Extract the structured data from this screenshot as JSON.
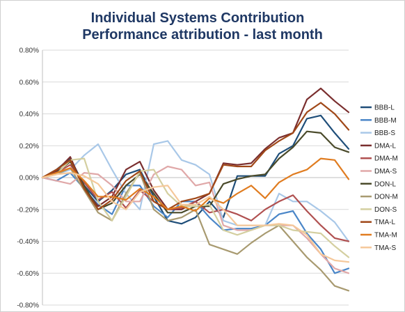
{
  "chart_data": {
    "type": "line",
    "title": "Individual Systems Contribution",
    "subtitle": "Performance attribution - last month",
    "xlabel": "",
    "ylabel": "",
    "ylim": [
      -0.008,
      0.008
    ],
    "y_ticks": [
      "0.80%",
      "0.60%",
      "0.40%",
      "0.20%",
      "0.00%",
      "-0.20%",
      "-0.40%",
      "-0.60%",
      "-0.80%"
    ],
    "y_tick_values": [
      0.008,
      0.006,
      0.004,
      0.002,
      0,
      -0.002,
      -0.004,
      -0.006,
      -0.008
    ],
    "x": [
      1,
      2,
      3,
      4,
      5,
      6,
      7,
      8,
      9,
      10,
      11,
      12,
      13,
      14,
      15,
      16,
      17,
      18,
      19,
      20,
      21,
      22,
      23
    ],
    "grid": "horizontal",
    "legend_position": "right",
    "series": [
      {
        "name": "BBB-L",
        "color": "#1f4e79",
        "values": [
          0,
          0.0005,
          0.0012,
          -0.0005,
          -0.0015,
          -0.0008,
          0.0002,
          0.0005,
          -0.0012,
          -0.0027,
          -0.0029,
          -0.0025,
          -0.0015,
          -0.0025,
          0.0001,
          0.0001,
          0.0001,
          0.0015,
          0.002,
          0.0037,
          0.0039,
          0.0028,
          0.0018
        ]
      },
      {
        "name": "BBB-M",
        "color": "#4a86c8",
        "values": [
          0,
          -0.0002,
          0.0003,
          -0.0007,
          -0.0017,
          -0.0023,
          -0.0005,
          -0.0005,
          -0.0018,
          -0.0025,
          -0.0015,
          -0.0015,
          -0.0025,
          -0.0033,
          -0.0032,
          -0.0032,
          -0.003,
          -0.0023,
          -0.0021,
          -0.0035,
          -0.0045,
          -0.006,
          -0.0057
        ]
      },
      {
        "name": "BBB-S",
        "color": "#a9c8e8",
        "values": [
          0,
          0.0002,
          0.0005,
          0.0014,
          0.0021,
          0.0005,
          -0.001,
          -0.002,
          0.0021,
          0.0023,
          0.0011,
          0.0008,
          0.0002,
          -0.0027,
          -0.003,
          -0.003,
          -0.003,
          -0.001,
          -0.0015,
          -0.0015,
          -0.0021,
          -0.0028,
          -0.004
        ]
      },
      {
        "name": "DMA-L",
        "color": "#7a2e2e",
        "values": [
          0,
          0.0004,
          0.0013,
          -0.0007,
          -0.0018,
          -0.0012,
          0.0005,
          0.001,
          -0.0008,
          -0.002,
          -0.002,
          -0.0015,
          -0.001,
          0.0009,
          0.0008,
          0.0009,
          0.0018,
          0.0025,
          0.0028,
          0.0049,
          0.0056,
          0.0048,
          0.0041
        ]
      },
      {
        "name": "DMA-M",
        "color": "#b05050",
        "values": [
          0,
          0.0003,
          0.0008,
          -0.0003,
          -0.0014,
          -0.0009,
          -0.0019,
          -0.0008,
          -0.0015,
          -0.002,
          -0.0019,
          -0.0015,
          -0.0022,
          -0.002,
          -0.0023,
          -0.0027,
          -0.002,
          -0.0015,
          -0.0011,
          -0.0021,
          -0.003,
          -0.0038,
          -0.004
        ]
      },
      {
        "name": "DMA-S",
        "color": "#e0a8a8",
        "values": [
          0,
          -0.0002,
          -0.0004,
          0.0003,
          0.0002,
          -0.0005,
          -0.0015,
          -0.0015,
          0.0002,
          0.0007,
          0.0005,
          -0.0005,
          -0.0003,
          -0.003,
          -0.0033,
          -0.0033,
          -0.003,
          -0.003,
          -0.003,
          -0.0038,
          -0.0048,
          -0.0057,
          -0.006
        ]
      },
      {
        "name": "DON-L",
        "color": "#4a4a2a",
        "values": [
          0,
          0.0003,
          0.001,
          -0.0005,
          -0.002,
          -0.0016,
          -0.0005,
          0.0002,
          -0.001,
          -0.0022,
          -0.0022,
          -0.0018,
          -0.0018,
          -0.0004,
          -0.0001,
          0.0001,
          0.0002,
          0.0012,
          0.0019,
          0.0029,
          0.0028,
          0.0019,
          0.0016
        ]
      },
      {
        "name": "DON-M",
        "color": "#a89a70",
        "values": [
          0,
          0.0002,
          0.0006,
          -0.0008,
          -0.0022,
          -0.0027,
          -0.001,
          0.0003,
          -0.002,
          -0.0027,
          -0.0025,
          -0.002,
          -0.0042,
          -0.0045,
          -0.0048,
          -0.0041,
          -0.0035,
          -0.003,
          -0.004,
          -0.005,
          -0.0058,
          -0.0068,
          -0.0071
        ]
      },
      {
        "name": "DON-S",
        "color": "#d4cfa0",
        "values": [
          0,
          0.0002,
          0.0011,
          0.0012,
          -0.0015,
          -0.0027,
          -0.0012,
          0.0004,
          0.0005,
          -0.001,
          -0.0018,
          -0.0018,
          -0.0017,
          -0.0033,
          -0.0036,
          -0.0033,
          -0.003,
          -0.003,
          -0.0033,
          -0.0034,
          -0.0035,
          -0.0043,
          -0.005
        ]
      },
      {
        "name": "TMA-L",
        "color": "#a04818",
        "values": [
          0,
          0.0005,
          0.0011,
          -0.0007,
          -0.002,
          -0.0014,
          -0.0002,
          0.0004,
          -0.0015,
          -0.002,
          -0.0015,
          -0.0013,
          -0.001,
          0.0008,
          0.0007,
          0.0007,
          0.0017,
          0.0023,
          0.0028,
          0.0041,
          0.0047,
          0.004,
          0.003
        ]
      },
      {
        "name": "TMA-M",
        "color": "#e07c20",
        "values": [
          0,
          0.0003,
          0.0006,
          -0.0002,
          -0.0012,
          -0.0012,
          -0.0014,
          -0.0007,
          -0.0012,
          -0.002,
          -0.0018,
          -0.0021,
          -0.0013,
          -0.0016,
          -0.001,
          -0.0005,
          -0.0013,
          -0.0003,
          0.0002,
          0.0005,
          0.0012,
          0.0011,
          -0.0001
        ]
      },
      {
        "name": "TMA-S",
        "color": "#f5c89a",
        "values": [
          0,
          0.0002,
          0.0003,
          0.0001,
          -0.0004,
          -0.0015,
          -0.002,
          -0.0009,
          -0.0006,
          -0.0005,
          -0.0017,
          -0.0017,
          -0.0012,
          -0.002,
          -0.003,
          -0.003,
          -0.003,
          -0.0029,
          -0.003,
          -0.0036,
          -0.0048,
          -0.0052,
          -0.0053
        ]
      }
    ]
  }
}
